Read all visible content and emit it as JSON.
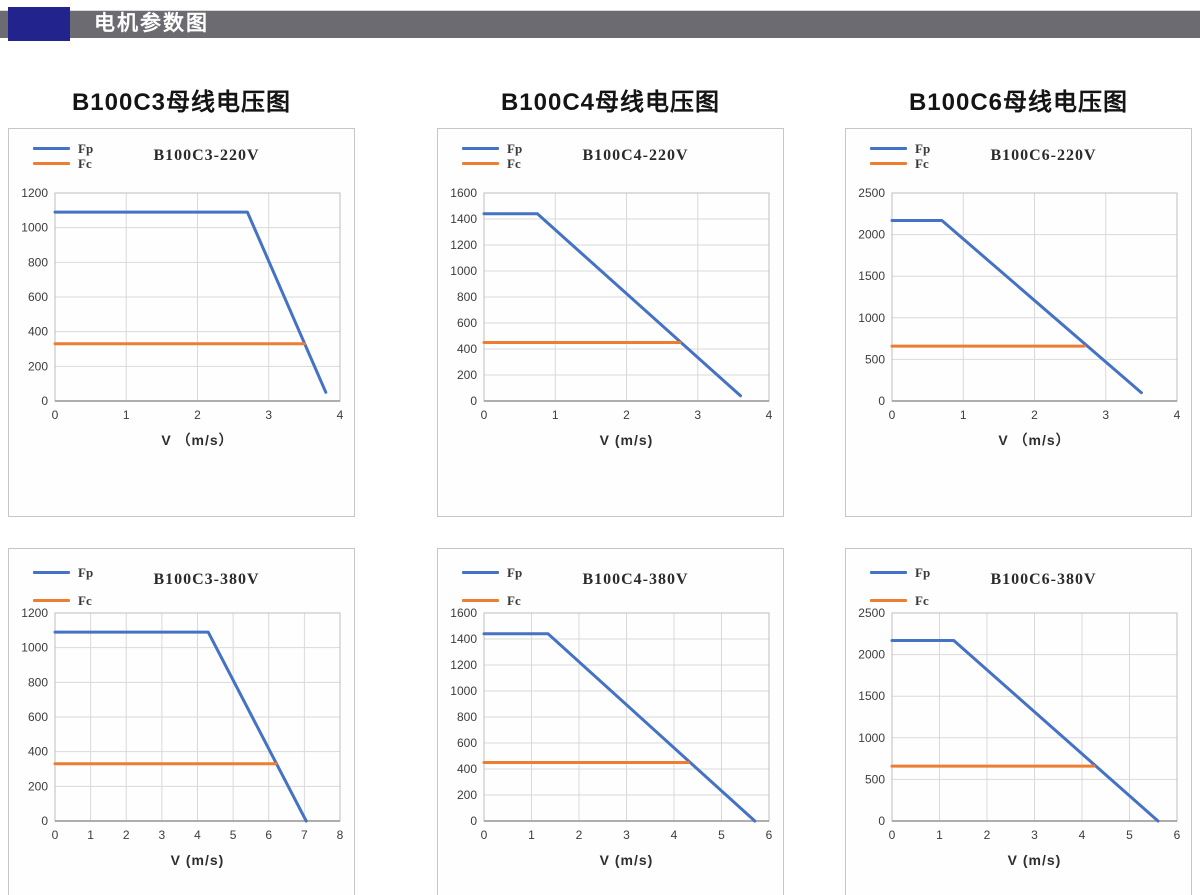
{
  "header": {
    "title": "电机参数图"
  },
  "colors": {
    "fp": "#4472C4",
    "fc": "#ED7D31",
    "header_bar": "#6B6B71",
    "header_accent": "#23238E",
    "gridline": "#D9D9D9"
  },
  "section_titles": [
    "B100C3母线电压图",
    "B100C4母线电压图",
    "B100C6母线电压图"
  ],
  "chart_data": [
    {
      "type": "line",
      "title": "B100C3-220V",
      "xlabel": "V （m/s）",
      "legend": [
        "Fp",
        "Fc"
      ],
      "xlim": [
        0,
        4
      ],
      "xstep": 1,
      "ylim": [
        0,
        1200
      ],
      "ystep": 200,
      "grid": true,
      "legend_position": "top-left",
      "series": [
        {
          "name": "Fp",
          "color": "#4472C4",
          "points": [
            [
              0,
              1090
            ],
            [
              2.7,
              1090
            ],
            [
              3.8,
              50
            ]
          ]
        },
        {
          "name": "Fc",
          "color": "#ED7D31",
          "points": [
            [
              0,
              330
            ],
            [
              3.5,
              330
            ]
          ]
        }
      ]
    },
    {
      "type": "line",
      "title": "B100C4-220V",
      "xlabel": "V (m/s)",
      "legend": [
        "Fp",
        "Fc"
      ],
      "xlim": [
        0,
        4
      ],
      "xstep": 1,
      "ylim": [
        0,
        1600
      ],
      "ystep": 200,
      "grid": true,
      "legend_position": "top-left",
      "series": [
        {
          "name": "Fp",
          "color": "#4472C4",
          "points": [
            [
              0,
              1440
            ],
            [
              0.75,
              1440
            ],
            [
              3.6,
              40
            ]
          ]
        },
        {
          "name": "Fc",
          "color": "#ED7D31",
          "points": [
            [
              0,
              450
            ],
            [
              2.75,
              450
            ]
          ]
        }
      ]
    },
    {
      "type": "line",
      "title": "B100C6-220V",
      "xlabel": "V （m/s）",
      "legend": [
        "Fp",
        "Fc"
      ],
      "xlim": [
        0,
        4
      ],
      "xstep": 1,
      "ylim": [
        0,
        2500
      ],
      "ystep": 500,
      "grid": true,
      "legend_position": "top-left",
      "series": [
        {
          "name": "Fp",
          "color": "#4472C4",
          "points": [
            [
              0,
              2170
            ],
            [
              0.7,
              2170
            ],
            [
              3.5,
              100
            ]
          ]
        },
        {
          "name": "Fc",
          "color": "#ED7D31",
          "points": [
            [
              0,
              660
            ],
            [
              2.7,
              660
            ]
          ]
        }
      ]
    },
    {
      "type": "line",
      "title": "B100C3-380V",
      "xlabel": "V (m/s)",
      "legend": [
        "Fp",
        "Fc"
      ],
      "xlim": [
        0,
        8
      ],
      "xstep": 1,
      "ylim": [
        0,
        1200
      ],
      "ystep": 200,
      "grid": true,
      "legend_position": "top-left",
      "series": [
        {
          "name": "Fp",
          "color": "#4472C4",
          "points": [
            [
              0,
              1090
            ],
            [
              4.3,
              1090
            ],
            [
              7.05,
              0
            ]
          ]
        },
        {
          "name": "Fc",
          "color": "#ED7D31",
          "points": [
            [
              0,
              330
            ],
            [
              6.2,
              330
            ]
          ]
        }
      ]
    },
    {
      "type": "line",
      "title": "B100C4-380V",
      "xlabel": "V (m/s)",
      "legend": [
        "Fp",
        "Fc"
      ],
      "xlim": [
        0,
        6
      ],
      "xstep": 1,
      "ylim": [
        0,
        1600
      ],
      "ystep": 200,
      "grid": true,
      "legend_position": "top-left",
      "series": [
        {
          "name": "Fp",
          "color": "#4472C4",
          "points": [
            [
              0,
              1440
            ],
            [
              1.35,
              1440
            ],
            [
              5.7,
              0
            ]
          ]
        },
        {
          "name": "Fc",
          "color": "#ED7D31",
          "points": [
            [
              0,
              450
            ],
            [
              4.3,
              450
            ]
          ]
        }
      ]
    },
    {
      "type": "line",
      "title": "B100C6-380V",
      "xlabel": "V (m/s)",
      "legend": [
        "Fp",
        "Fc"
      ],
      "xlim": [
        0,
        6
      ],
      "xstep": 1,
      "ylim": [
        0,
        2500
      ],
      "ystep": 500,
      "grid": true,
      "legend_position": "top-left",
      "series": [
        {
          "name": "Fp",
          "color": "#4472C4",
          "points": [
            [
              0,
              2170
            ],
            [
              1.3,
              2170
            ],
            [
              5.6,
              0
            ]
          ]
        },
        {
          "name": "Fc",
          "color": "#ED7D31",
          "points": [
            [
              0,
              660
            ],
            [
              4.25,
              660
            ]
          ]
        }
      ]
    }
  ]
}
